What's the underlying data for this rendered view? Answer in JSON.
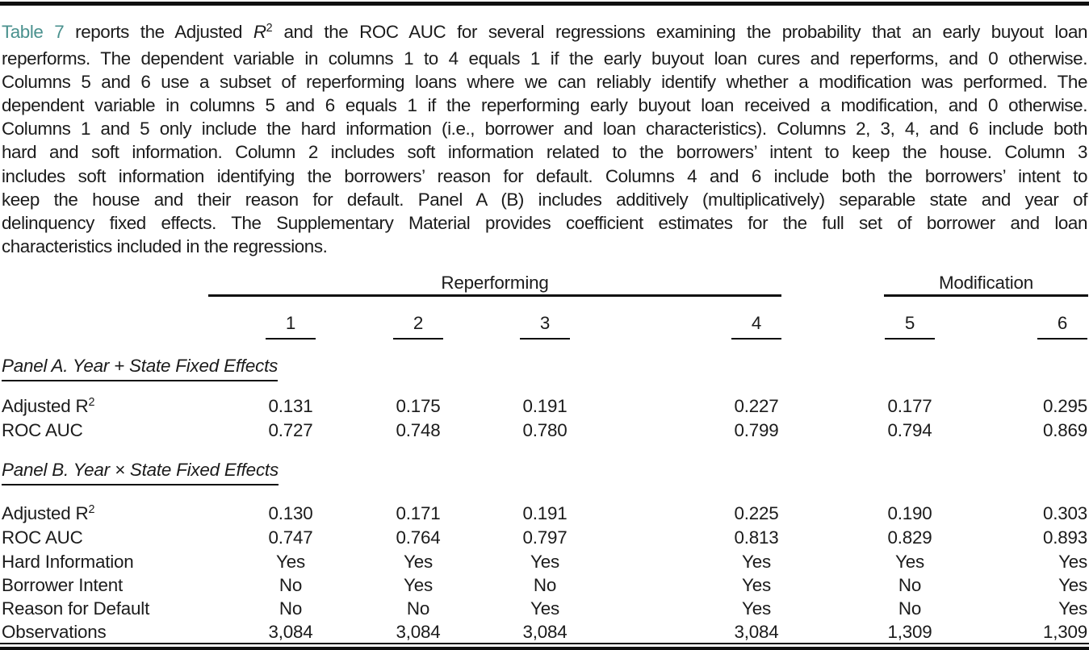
{
  "colors": {
    "ref_link": "#4A918E",
    "text": "#1B1B1B",
    "rule": "#101010"
  },
  "caption": {
    "line1": {
      "link": "Table 7",
      "pre": " reports the Adjusted ",
      "r": "R",
      "sup": "2",
      "post": " and the ROC AUC for several regressions examining the probability that an early buyout loan"
    },
    "lines": [
      "reperforms. The dependent variable in columns 1 to 4 equals 1 if the early buyout loan cures and reperforms, and 0 otherwise.",
      "Columns 5 and 6 use a subset of reperforming loans where we can reliably identify whether a modification was performed. The",
      "dependent variable in columns 5 and 6 equals 1 if the reperforming early buyout loan received a modification, and 0 otherwise.",
      "Columns 1 and 5 only include the hard information (i.e., borrower and loan characteristics). Columns 2, 3, 4, and 6 include both",
      "hard and soft information. Column 2 includes soft information related to the borrowers’ intent to keep the house. Column 3",
      "includes soft information identifying the borrowers’ reason for default. Columns 4 and 6 include both the borrowers’ intent to",
      "keep the house and their reason for default. Panel A (B) includes additively (multiplicatively) separable state and year of",
      "delinquency fixed effects. The Supplementary Material provides coefficient estimates for the full set of borrower and loan",
      "characteristics included in the regressions."
    ]
  },
  "table": {
    "groups": {
      "reperforming": "Reperforming",
      "modification": "Modification"
    },
    "cols": [
      "1",
      "2",
      "3",
      "4",
      "5",
      "6"
    ],
    "panelA": {
      "title": "Panel A. Year + State Fixed Effects",
      "adj_r2": {
        "label": "Adjusted R",
        "sup": "2",
        "v": [
          "0.131",
          "0.175",
          "0.191",
          "0.227",
          "0.177",
          "0.295"
        ]
      },
      "roc_auc": {
        "label": "ROC AUC",
        "v": [
          "0.727",
          "0.748",
          "0.780",
          "0.799",
          "0.794",
          "0.869"
        ]
      }
    },
    "panelB": {
      "title": "Panel B. Year × State Fixed Effects",
      "adj_r2": {
        "label": "Adjusted R",
        "sup": "2",
        "v": [
          "0.130",
          "0.171",
          "0.191",
          "0.225",
          "0.190",
          "0.303"
        ]
      },
      "roc_auc": {
        "label": "ROC AUC",
        "v": [
          "0.747",
          "0.764",
          "0.797",
          "0.813",
          "0.829",
          "0.893"
        ]
      },
      "hard_information": {
        "label": "Hard Information",
        "v": [
          "Yes",
          "Yes",
          "Yes",
          "Yes",
          "Yes",
          "Yes"
        ]
      },
      "borrower_intent": {
        "label": "Borrower Intent",
        "v": [
          "No",
          "Yes",
          "No",
          "Yes",
          "No",
          "Yes"
        ]
      },
      "reason_for_default": {
        "label": "Reason for Default",
        "v": [
          "No",
          "No",
          "Yes",
          "Yes",
          "No",
          "Yes"
        ]
      },
      "observations": {
        "label": "Observations",
        "v": [
          "3,084",
          "3,084",
          "3,084",
          "3,084",
          "1,309",
          "1,309"
        ]
      }
    }
  }
}
